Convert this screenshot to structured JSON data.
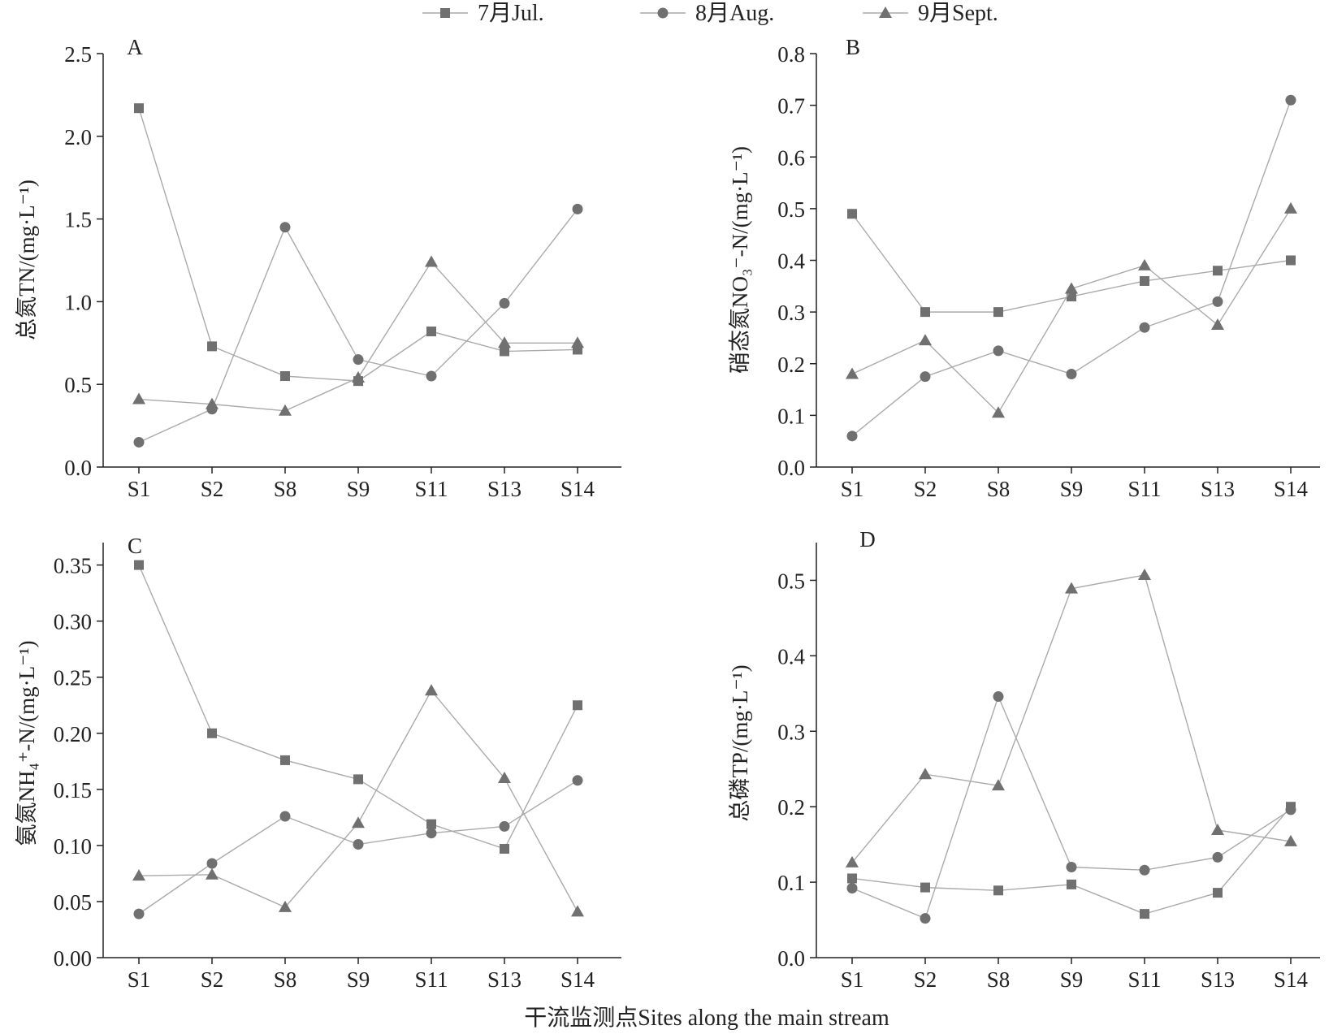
{
  "colors": {
    "series": "#707070",
    "line": "#aaaaaa",
    "axis": "#222222",
    "text": "#222222"
  },
  "legend": {
    "position": "top-center",
    "items": [
      {
        "label": "7月Jul.",
        "marker": "square"
      },
      {
        "label": "8月Aug.",
        "marker": "circle"
      },
      {
        "label": "9月Sept.",
        "marker": "triangle"
      }
    ]
  },
  "xlabel": "干流监测点Sites along the main stream",
  "chart_data": [
    {
      "panel": "A",
      "type": "line",
      "ylabel": "总氮TN/(mg·L⁻¹)",
      "categories": [
        "S1",
        "S2",
        "S8",
        "S9",
        "S11",
        "S13",
        "S14"
      ],
      "ylim": [
        0,
        2.5
      ],
      "yticks": [
        "0.0",
        "0.5",
        "1.0",
        "1.5",
        "2.0",
        "2.5"
      ],
      "series": [
        {
          "name": "7月Jul.",
          "marker": "square",
          "values": [
            2.17,
            0.73,
            0.55,
            0.52,
            0.82,
            0.7,
            0.71
          ]
        },
        {
          "name": "8月Aug.",
          "marker": "circle",
          "values": [
            0.15,
            0.35,
            1.45,
            0.65,
            0.55,
            0.99,
            1.56
          ]
        },
        {
          "name": "9月Sept.",
          "marker": "triangle",
          "values": [
            0.41,
            0.38,
            0.34,
            0.54,
            1.24,
            0.75,
            0.75
          ]
        }
      ]
    },
    {
      "panel": "B",
      "type": "line",
      "ylabel": "硝态氮NO₃⁻-N/(mg·L⁻¹)",
      "categories": [
        "S1",
        "S2",
        "S8",
        "S9",
        "S11",
        "S13",
        "S14"
      ],
      "ylim": [
        0,
        0.8
      ],
      "yticks": [
        "0.0",
        "0.1",
        "0.2",
        "0.3",
        "0.4",
        "0.5",
        "0.6",
        "0.7",
        "0.8"
      ],
      "series": [
        {
          "name": "7月Jul.",
          "marker": "square",
          "values": [
            0.49,
            0.3,
            0.3,
            0.33,
            0.36,
            0.38,
            0.4
          ]
        },
        {
          "name": "8月Aug.",
          "marker": "circle",
          "values": [
            0.06,
            0.175,
            0.225,
            0.18,
            0.27,
            0.32,
            0.71
          ]
        },
        {
          "name": "9月Sept.",
          "marker": "triangle",
          "values": [
            0.18,
            0.245,
            0.105,
            0.345,
            0.39,
            0.275,
            0.5
          ]
        }
      ]
    },
    {
      "panel": "C",
      "type": "line",
      "ylabel": "氨氮NH₄⁺-N/(mg·L⁻¹)",
      "categories": [
        "S1",
        "S2",
        "S8",
        "S9",
        "S11",
        "S13",
        "S14"
      ],
      "ylim": [
        0,
        0.37
      ],
      "yticks": [
        "0.00",
        "0.05",
        "0.10",
        "0.15",
        "0.20",
        "0.25",
        "0.30",
        "0.35"
      ],
      "series": [
        {
          "name": "7月Jul.",
          "marker": "square",
          "values": [
            0.35,
            0.2,
            0.176,
            0.159,
            0.119,
            0.097,
            0.225
          ]
        },
        {
          "name": "8月Aug.",
          "marker": "circle",
          "values": [
            0.039,
            0.084,
            0.126,
            0.101,
            0.111,
            0.117,
            0.158
          ]
        },
        {
          "name": "9月Sept.",
          "marker": "triangle",
          "values": [
            0.073,
            0.074,
            0.045,
            0.12,
            0.238,
            0.16,
            0.041
          ]
        }
      ]
    },
    {
      "panel": "D",
      "type": "line",
      "ylabel": "总磷TP/(mg·L⁻¹)",
      "categories": [
        "S1",
        "S2",
        "S8",
        "S9",
        "S11",
        "S13",
        "S14"
      ],
      "ylim": [
        0,
        0.55
      ],
      "yticks": [
        "0.0",
        "0.1",
        "0.2",
        "0.3",
        "0.4",
        "0.5"
      ],
      "series": [
        {
          "name": "7月Jul.",
          "marker": "square",
          "values": [
            0.105,
            0.093,
            0.089,
            0.097,
            0.058,
            0.086,
            0.2
          ]
        },
        {
          "name": "8月Aug.",
          "marker": "circle",
          "values": [
            0.092,
            0.052,
            0.346,
            0.12,
            0.116,
            0.133,
            0.196
          ]
        },
        {
          "name": "9月Sept.",
          "marker": "triangle",
          "values": [
            0.126,
            0.243,
            0.228,
            0.489,
            0.507,
            0.169,
            0.154
          ]
        }
      ]
    }
  ]
}
